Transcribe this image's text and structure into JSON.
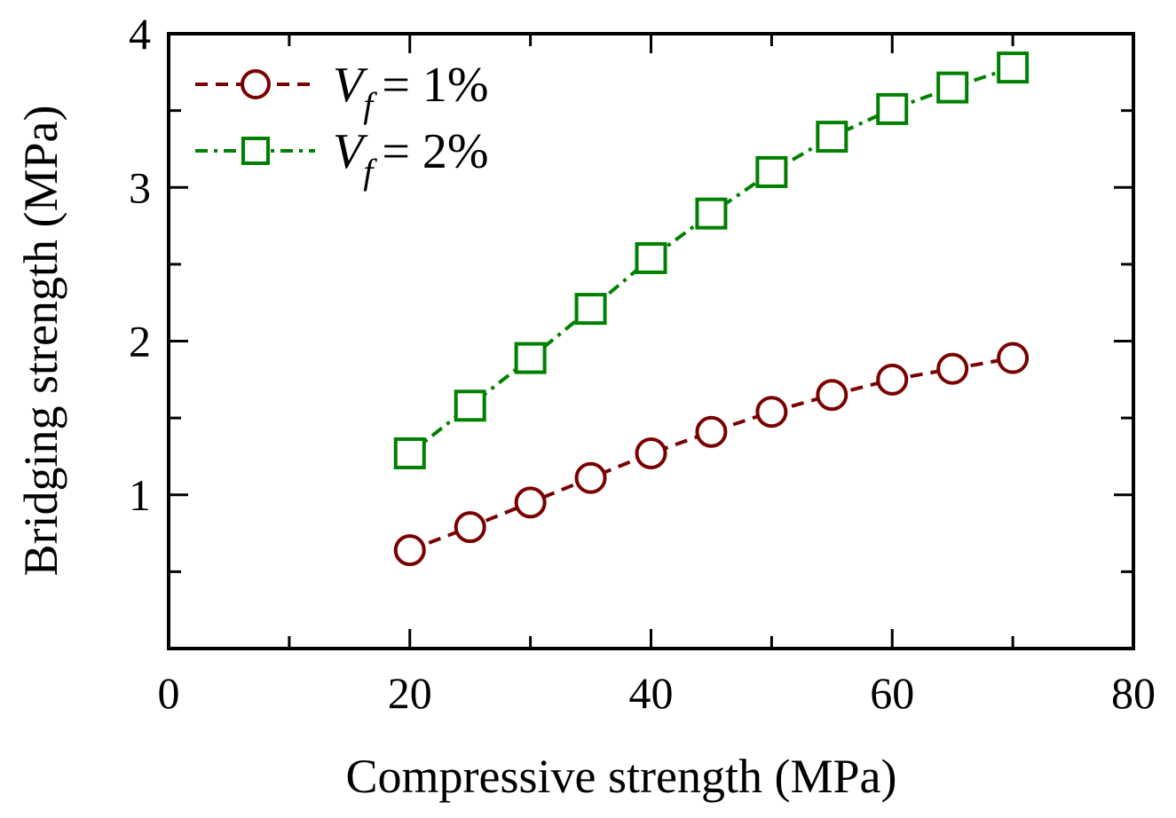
{
  "chart_data": {
    "type": "line",
    "xlabel": "Compressive strength (MPa)",
    "ylabel": "Bridging strength (MPa)",
    "xlim": [
      0,
      80
    ],
    "ylim": [
      0,
      4
    ],
    "xticks": [
      0,
      20,
      40,
      60,
      80
    ],
    "yticks": [
      1,
      2,
      3,
      4
    ],
    "x_minor_step": 10,
    "y_minor_step": 0.5,
    "grid": false,
    "legend_position": "top-left",
    "x": [
      20,
      25,
      30,
      35,
      40,
      45,
      50,
      55,
      60,
      65,
      70
    ],
    "series": [
      {
        "name": "V_f = 1%",
        "legend_symbol": "V",
        "legend_subscript": "f",
        "legend_value": "= 1%",
        "color": "#7a0000",
        "marker": "circle",
        "line_style": "dashed",
        "values": [
          0.64,
          0.79,
          0.95,
          1.11,
          1.27,
          1.41,
          1.54,
          1.65,
          1.75,
          1.82,
          1.89
        ]
      },
      {
        "name": "V_f = 2%",
        "legend_symbol": "V",
        "legend_subscript": "f",
        "legend_value": "= 2%",
        "color": "#008000",
        "marker": "square",
        "line_style": "dash-dot",
        "values": [
          1.27,
          1.58,
          1.89,
          2.21,
          2.54,
          2.83,
          3.1,
          3.33,
          3.51,
          3.65,
          3.78
        ]
      }
    ]
  }
}
